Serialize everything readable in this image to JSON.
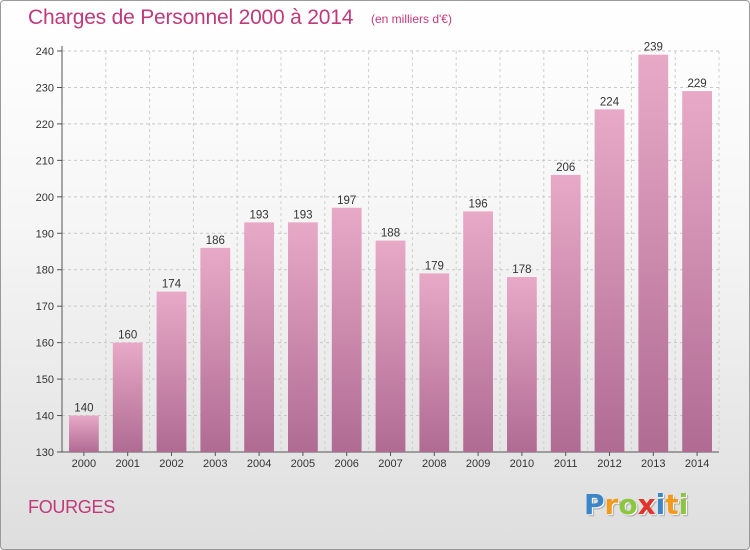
{
  "header": {
    "title": "Charges de Personnel 2000 à 2014",
    "subtitle": "(en milliers d'€)"
  },
  "footer": {
    "town": "FOURGES",
    "logo_letters": [
      "P",
      "r",
      "o",
      "x",
      "i",
      "t",
      "i"
    ],
    "logo_colors": [
      "#3a86c8",
      "#f29a1c",
      "#8cc63e",
      "#e2332a",
      "#3a86c8",
      "#f29a1c",
      "#8cc63e"
    ]
  },
  "chart_data": {
    "type": "bar",
    "title": "Charges de Personnel 2000 à 2014",
    "subtitle": "(en milliers d'€)",
    "categories": [
      "2000",
      "2001",
      "2002",
      "2003",
      "2004",
      "2005",
      "2006",
      "2007",
      "2008",
      "2009",
      "2010",
      "2011",
      "2012",
      "2013",
      "2014"
    ],
    "values": [
      140,
      160,
      174,
      186,
      193,
      193,
      197,
      188,
      179,
      196,
      178,
      206,
      224,
      239,
      229
    ],
    "ylim": [
      130,
      240
    ],
    "yticks": [
      130,
      140,
      150,
      160,
      170,
      180,
      190,
      200,
      210,
      220,
      230,
      240
    ],
    "grid": true,
    "bar_color": "#d5829f"
  }
}
